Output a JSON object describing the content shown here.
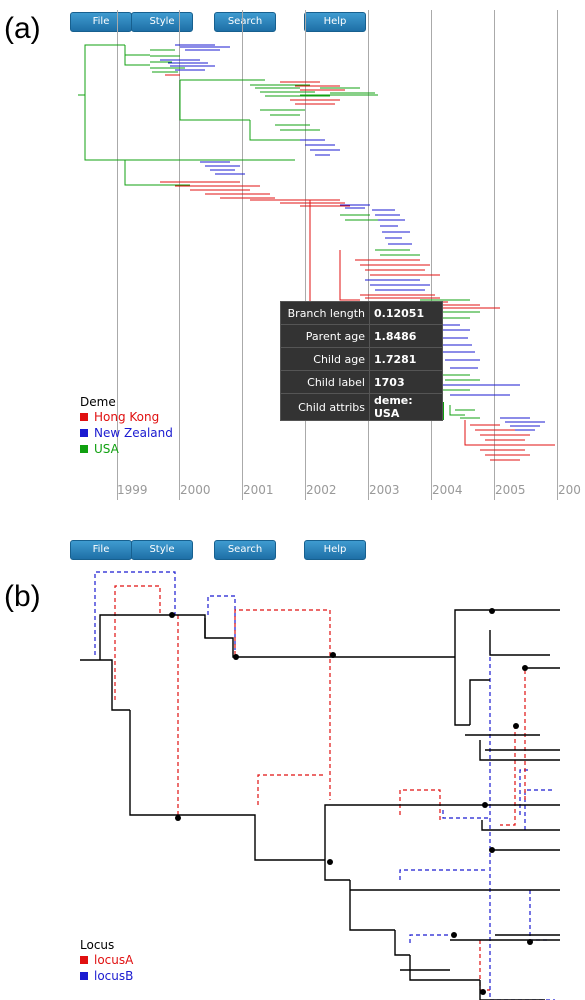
{
  "panels": {
    "a": {
      "label": "(a)",
      "toolbar": [
        "File",
        "Style",
        "Search",
        "Help"
      ],
      "years": [
        "1999",
        "2000",
        "2001",
        "2002",
        "2003",
        "2004",
        "2005",
        "200"
      ],
      "tooltip": [
        {
          "key": "Branch length",
          "value": "0.12051"
        },
        {
          "key": "Parent age",
          "value": "1.8486"
        },
        {
          "key": "Child age",
          "value": "1.7281"
        },
        {
          "key": "Child label",
          "value": "1703"
        },
        {
          "key": "Child attribs",
          "value": "deme: USA"
        }
      ],
      "legend": {
        "title": "Deme",
        "items": [
          {
            "label": "Hong Kong",
            "color": "#e01010"
          },
          {
            "label": "New Zealand",
            "color": "#1a1ad0"
          },
          {
            "label": "USA",
            "color": "#10a010"
          }
        ]
      }
    },
    "b": {
      "label": "(b)",
      "toolbar": [
        "File",
        "Style",
        "Search",
        "Help"
      ],
      "legend": {
        "title": "Locus",
        "items": [
          {
            "label": "locusA",
            "color": "#e01010"
          },
          {
            "label": "locusB",
            "color": "#1a1ad0"
          }
        ]
      }
    }
  }
}
